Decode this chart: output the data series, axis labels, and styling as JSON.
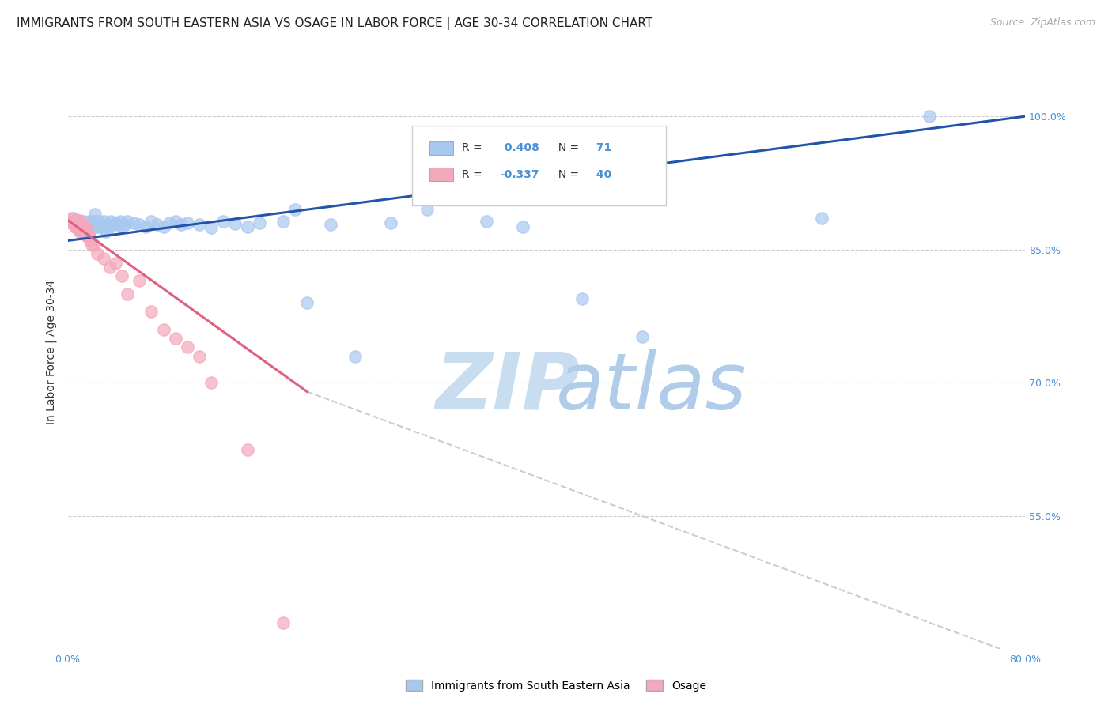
{
  "title": "IMMIGRANTS FROM SOUTH EASTERN ASIA VS OSAGE IN LABOR FORCE | AGE 30-34 CORRELATION CHART",
  "source": "Source: ZipAtlas.com",
  "ylabel": "In Labor Force | Age 30-34",
  "xlim": [
    0.0,
    0.8
  ],
  "ylim": [
    0.4,
    1.07
  ],
  "xticks": [
    0.0,
    0.1,
    0.2,
    0.3,
    0.4,
    0.5,
    0.6,
    0.7,
    0.8
  ],
  "xticklabels": [
    "0.0%",
    "",
    "",
    "",
    "",
    "",
    "",
    "",
    "80.0%"
  ],
  "yticks_right": [
    0.55,
    0.7,
    0.85,
    1.0
  ],
  "yticklabels_right": [
    "55.0%",
    "70.0%",
    "85.0%",
    "100.0%"
  ],
  "blue_R": 0.408,
  "blue_N": 71,
  "pink_R": -0.337,
  "pink_N": 40,
  "blue_color": "#a8c8f0",
  "pink_color": "#f4a8bc",
  "blue_line_color": "#2255aa",
  "pink_line_color": "#e06080",
  "dashed_line_color": "#cccccc",
  "legend_label_blue": "Immigrants from South Eastern Asia",
  "legend_label_pink": "Osage",
  "blue_scatter_x": [
    0.003,
    0.005,
    0.006,
    0.007,
    0.008,
    0.009,
    0.01,
    0.01,
    0.011,
    0.012,
    0.013,
    0.014,
    0.015,
    0.015,
    0.016,
    0.017,
    0.018,
    0.018,
    0.019,
    0.02,
    0.021,
    0.022,
    0.023,
    0.023,
    0.024,
    0.025,
    0.026,
    0.027,
    0.028,
    0.03,
    0.031,
    0.032,
    0.034,
    0.035,
    0.036,
    0.038,
    0.04,
    0.042,
    0.044,
    0.046,
    0.048,
    0.05,
    0.055,
    0.06,
    0.065,
    0.07,
    0.075,
    0.08,
    0.085,
    0.09,
    0.095,
    0.1,
    0.11,
    0.12,
    0.13,
    0.14,
    0.15,
    0.16,
    0.18,
    0.19,
    0.2,
    0.22,
    0.24,
    0.27,
    0.3,
    0.35,
    0.38,
    0.43,
    0.48,
    0.63,
    0.72
  ],
  "blue_scatter_y": [
    0.88,
    0.885,
    0.878,
    0.876,
    0.882,
    0.874,
    0.88,
    0.872,
    0.878,
    0.876,
    0.882,
    0.874,
    0.88,
    0.87,
    0.878,
    0.876,
    0.882,
    0.87,
    0.878,
    0.88,
    0.882,
    0.878,
    0.876,
    0.89,
    0.882,
    0.878,
    0.876,
    0.88,
    0.878,
    0.882,
    0.874,
    0.87,
    0.878,
    0.876,
    0.882,
    0.878,
    0.88,
    0.878,
    0.882,
    0.876,
    0.878,
    0.882,
    0.88,
    0.878,
    0.876,
    0.882,
    0.878,
    0.876,
    0.88,
    0.882,
    0.878,
    0.88,
    0.878,
    0.875,
    0.882,
    0.879,
    0.876,
    0.88,
    0.882,
    0.895,
    0.79,
    0.878,
    0.73,
    0.88,
    0.895,
    0.882,
    0.876,
    0.795,
    0.752,
    0.885,
    1.0
  ],
  "pink_scatter_x": [
    0.003,
    0.004,
    0.004,
    0.005,
    0.005,
    0.006,
    0.006,
    0.007,
    0.007,
    0.008,
    0.008,
    0.009,
    0.01,
    0.01,
    0.011,
    0.012,
    0.013,
    0.014,
    0.015,
    0.016,
    0.017,
    0.018,
    0.019,
    0.02,
    0.022,
    0.025,
    0.03,
    0.035,
    0.04,
    0.045,
    0.05,
    0.06,
    0.07,
    0.08,
    0.09,
    0.1,
    0.11,
    0.12,
    0.15,
    0.18
  ],
  "pink_scatter_y": [
    0.885,
    0.882,
    0.88,
    0.882,
    0.878,
    0.88,
    0.876,
    0.884,
    0.876,
    0.88,
    0.874,
    0.878,
    0.883,
    0.87,
    0.878,
    0.874,
    0.87,
    0.868,
    0.876,
    0.865,
    0.87,
    0.865,
    0.86,
    0.855,
    0.855,
    0.845,
    0.84,
    0.83,
    0.835,
    0.82,
    0.8,
    0.815,
    0.78,
    0.76,
    0.75,
    0.74,
    0.73,
    0.7,
    0.625,
    0.43
  ],
  "blue_line_x": [
    0.0,
    0.8
  ],
  "blue_line_y": [
    0.86,
    1.0
  ],
  "pink_line_x": [
    0.0,
    0.2
  ],
  "pink_line_y": [
    0.883,
    0.69
  ],
  "dashed_line_x": [
    0.2,
    0.8
  ],
  "dashed_line_y": [
    0.69,
    0.39
  ],
  "title_fontsize": 11,
  "axis_label_fontsize": 10,
  "tick_fontsize": 9,
  "legend_fontsize": 10,
  "source_fontsize": 9
}
